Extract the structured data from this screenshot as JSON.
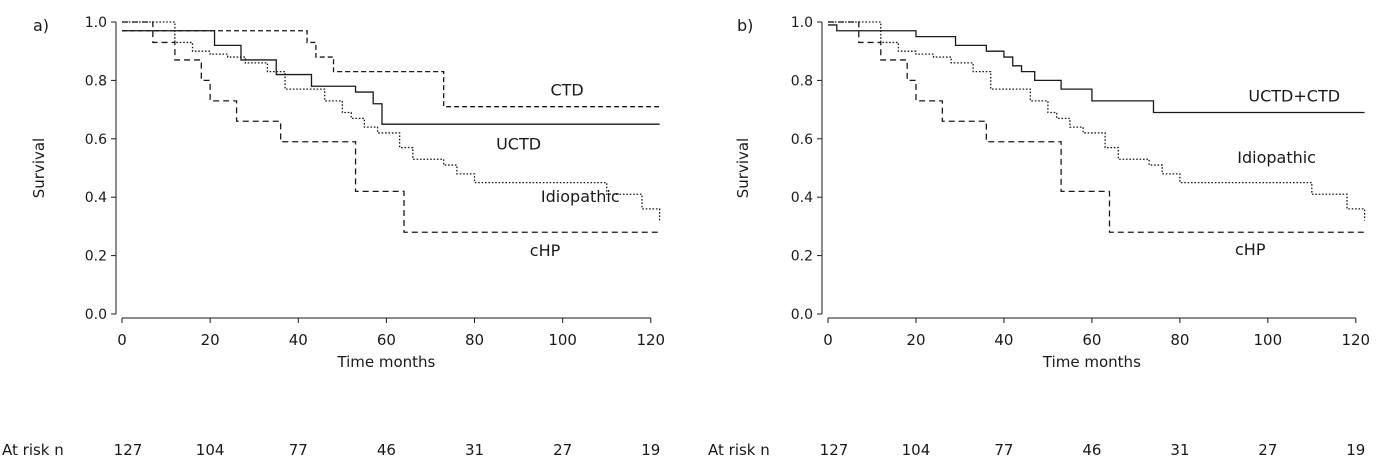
{
  "chart_data": [
    {
      "panel_label": "a)",
      "type": "line",
      "step": true,
      "xlabel": "Time months",
      "ylabel": "Survival",
      "xlim": [
        0,
        122
      ],
      "ylim": [
        0.0,
        1.0
      ],
      "xticks": [
        0,
        20,
        40,
        60,
        80,
        100,
        120
      ],
      "yticks": [
        "0.0",
        "0.2",
        "0.4",
        "0.6",
        "0.8",
        "1.0"
      ],
      "grid": false,
      "series": [
        {
          "name": "CTD",
          "line_style": "dashed-long",
          "x": [
            0,
            15,
            42,
            44,
            48,
            73,
            122
          ],
          "y": [
            0.97,
            0.97,
            0.93,
            0.88,
            0.83,
            0.71,
            0.71
          ]
        },
        {
          "name": "UCTD",
          "line_style": "solid",
          "x": [
            0,
            20,
            21,
            27,
            35,
            43,
            53,
            57,
            59,
            122
          ],
          "y": [
            0.97,
            0.97,
            0.92,
            0.87,
            0.82,
            0.78,
            0.76,
            0.72,
            0.65,
            0.65
          ]
        },
        {
          "name": "Idiopathic",
          "line_style": "dotted",
          "x": [
            0,
            10,
            12,
            16,
            20,
            24,
            28,
            33,
            37,
            46,
            50,
            52,
            55,
            58,
            63,
            66,
            73,
            76,
            80,
            110,
            118,
            122
          ],
          "y": [
            1.0,
            1.0,
            0.93,
            0.9,
            0.89,
            0.88,
            0.86,
            0.83,
            0.77,
            0.73,
            0.69,
            0.67,
            0.64,
            0.62,
            0.57,
            0.53,
            0.51,
            0.48,
            0.45,
            0.41,
            0.36,
            0.32
          ]
        },
        {
          "name": "cHP",
          "line_style": "dashed",
          "x": [
            0,
            7,
            12,
            18,
            20,
            26,
            36,
            53,
            56,
            64,
            122
          ],
          "y": [
            1.0,
            0.93,
            0.87,
            0.8,
            0.73,
            0.66,
            0.59,
            0.42,
            0.42,
            0.28,
            0.28
          ]
        }
      ],
      "annotations": [
        {
          "text": "CTD",
          "x": 101,
          "y": 0.765
        },
        {
          "text": "UCTD",
          "x": 90,
          "y": 0.58
        },
        {
          "text": "Idiopathic",
          "x": 104,
          "y": 0.4
        },
        {
          "text": "cHP",
          "x": 96,
          "y": 0.215
        }
      ],
      "at_risk": {
        "label": "At risk n",
        "x": [
          0,
          20,
          40,
          60,
          80,
          100,
          120
        ],
        "values": [
          127,
          104,
          77,
          46,
          31,
          27,
          19
        ]
      }
    },
    {
      "panel_label": "b)",
      "type": "line",
      "step": true,
      "xlabel": "Time months",
      "ylabel": "Survival",
      "xlim": [
        0,
        122
      ],
      "ylim": [
        0.0,
        1.0
      ],
      "xticks": [
        0,
        20,
        40,
        60,
        80,
        100,
        120
      ],
      "yticks": [
        "0.0",
        "0.2",
        "0.4",
        "0.6",
        "0.8",
        "1.0"
      ],
      "grid": false,
      "series": [
        {
          "name": "UCTD+CTD",
          "line_style": "solid",
          "x": [
            0,
            2,
            20,
            29,
            36,
            40,
            42,
            44,
            47,
            53,
            60,
            74,
            122
          ],
          "y": [
            0.99,
            0.97,
            0.95,
            0.92,
            0.9,
            0.88,
            0.85,
            0.83,
            0.8,
            0.77,
            0.73,
            0.69,
            0.69
          ]
        },
        {
          "name": "Idiopathic",
          "line_style": "dotted",
          "x": [
            0,
            10,
            12,
            16,
            20,
            24,
            28,
            33,
            37,
            46,
            50,
            52,
            55,
            58,
            63,
            66,
            73,
            76,
            80,
            110,
            118,
            122
          ],
          "y": [
            1.0,
            1.0,
            0.93,
            0.9,
            0.89,
            0.88,
            0.86,
            0.83,
            0.77,
            0.73,
            0.69,
            0.67,
            0.64,
            0.62,
            0.57,
            0.53,
            0.51,
            0.48,
            0.45,
            0.41,
            0.36,
            0.32
          ]
        },
        {
          "name": "cHP",
          "line_style": "dashed",
          "x": [
            0,
            7,
            12,
            18,
            20,
            26,
            36,
            53,
            56,
            64,
            122
          ],
          "y": [
            1.0,
            0.93,
            0.87,
            0.8,
            0.73,
            0.66,
            0.59,
            0.42,
            0.42,
            0.28,
            0.28
          ]
        }
      ],
      "annotations": [
        {
          "text": "UCTD+CTD",
          "x": 106,
          "y": 0.745
        },
        {
          "text": "Idiopathic",
          "x": 102,
          "y": 0.535
        },
        {
          "text": "cHP",
          "x": 96,
          "y": 0.22
        }
      ],
      "at_risk": {
        "label": "At risk n",
        "x": [
          0,
          20,
          40,
          60,
          80,
          100,
          120
        ],
        "values": [
          127,
          104,
          77,
          46,
          31,
          27,
          19
        ]
      }
    }
  ]
}
